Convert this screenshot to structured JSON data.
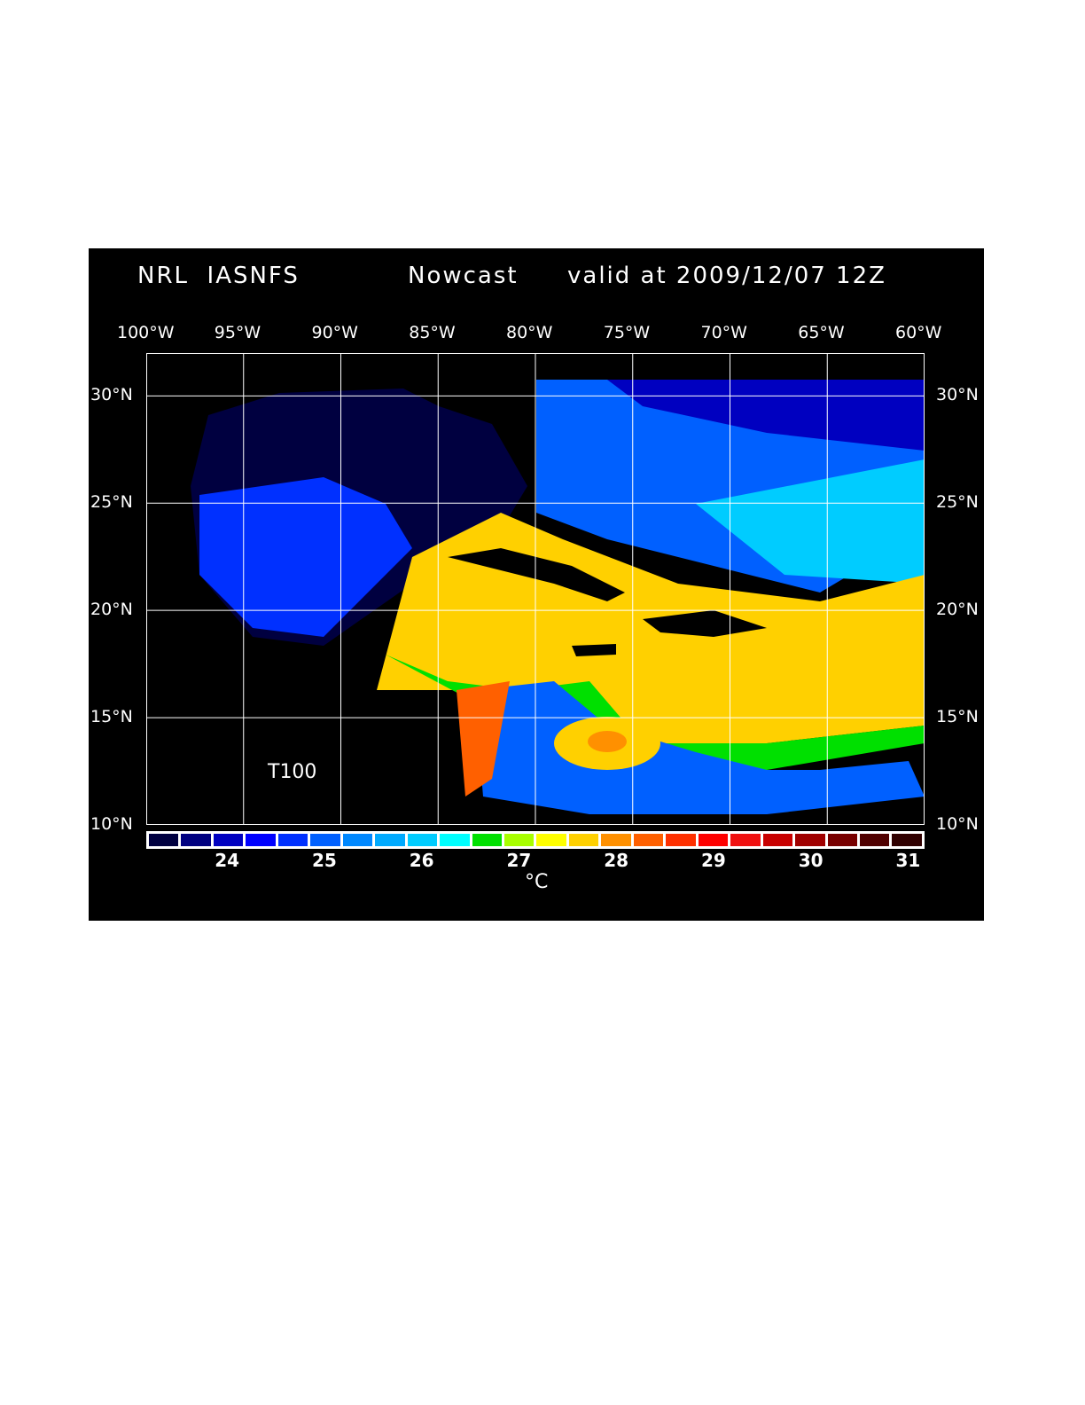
{
  "title": {
    "model": "NRL  IASNFS",
    "product": "Nowcast",
    "valid": "valid at 2009/12/07 12Z"
  },
  "layer_label": "T100",
  "map": {
    "lon_range": [
      -100,
      -60
    ],
    "lat_range": [
      10,
      32
    ],
    "lon_labels": [
      "100°W",
      "95°W",
      "90°W",
      "85°W",
      "80°W",
      "75°W",
      "70°W",
      "65°W",
      "60°W"
    ],
    "lat_labels": [
      "30°N",
      "25°N",
      "20°N",
      "15°N",
      "10°N"
    ]
  },
  "colorbar": {
    "unit": "°C",
    "tick_labels": [
      "24",
      "25",
      "26",
      "27",
      "28",
      "29",
      "30",
      "31"
    ],
    "colors": [
      "#000040",
      "#000080",
      "#0000c0",
      "#0000ff",
      "#0030ff",
      "#0060ff",
      "#0088ff",
      "#00aaff",
      "#00ccff",
      "#00ffff",
      "#00e000",
      "#a8ff00",
      "#ffff00",
      "#ffd000",
      "#ff9000",
      "#ff6000",
      "#ff3000",
      "#ff0000",
      "#f01010",
      "#c80000",
      "#a00000",
      "#780000",
      "#500000",
      "#300000"
    ]
  }
}
